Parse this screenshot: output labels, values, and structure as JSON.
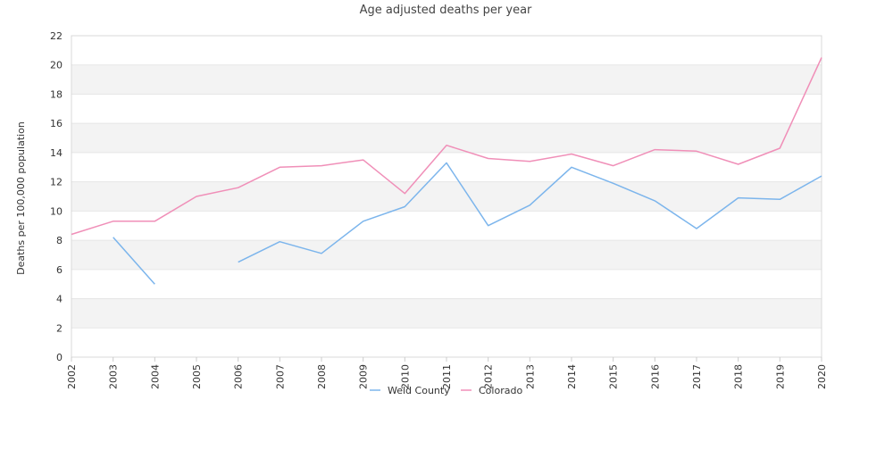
{
  "chart_data": {
    "type": "line",
    "title": "Age adjusted deaths per year",
    "xlabel": "",
    "ylabel": "Deaths per 100,000 population",
    "ylim": [
      0,
      22
    ],
    "yticks": [
      0,
      2,
      4,
      6,
      8,
      10,
      12,
      14,
      16,
      18,
      20,
      22
    ],
    "categories": [
      "2002",
      "2003",
      "2004",
      "2005",
      "2006",
      "2007",
      "2008",
      "2009",
      "2010",
      "2011",
      "2012",
      "2013",
      "2014",
      "2015",
      "2016",
      "2017",
      "2018",
      "2019",
      "2020"
    ],
    "series": [
      {
        "name": "Weld County",
        "color": "#7cb5ec",
        "values": [
          null,
          8.2,
          5.0,
          null,
          6.5,
          7.9,
          7.1,
          9.3,
          10.3,
          13.3,
          9.0,
          10.4,
          13.0,
          11.9,
          10.7,
          8.8,
          10.9,
          10.8,
          12.4
        ]
      },
      {
        "name": "Colorado",
        "color": "#f08fb8",
        "values": [
          8.4,
          9.3,
          9.3,
          11.0,
          11.6,
          13.0,
          13.1,
          13.5,
          11.2,
          14.5,
          13.6,
          13.4,
          13.9,
          13.1,
          14.2,
          14.1,
          13.2,
          14.3,
          20.5
        ]
      }
    ],
    "grid": "horizontal alternating bands",
    "legend": "bottom-center"
  }
}
